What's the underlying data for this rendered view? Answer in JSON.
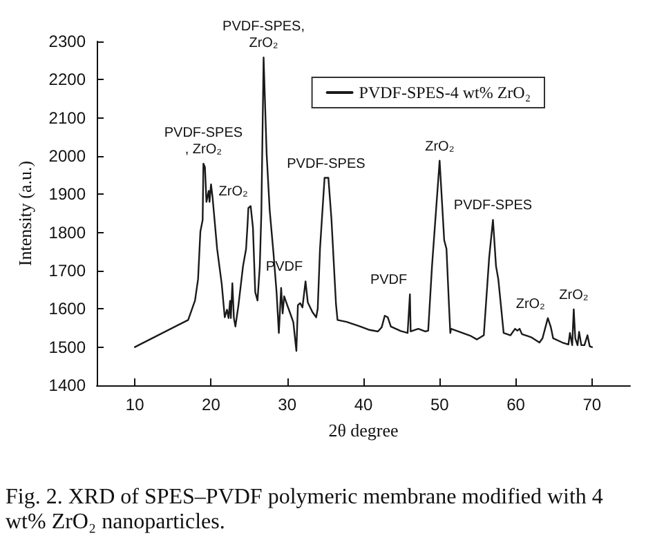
{
  "chart_data": {
    "type": "line",
    "xlabel": "2θ degree",
    "ylabel": "Intensity (a.u.)",
    "xlim": [
      5,
      75
    ],
    "xticks": [
      10,
      20,
      30,
      40,
      50,
      60,
      70
    ],
    "ylim": [
      1400,
      2300
    ],
    "yticks": [
      1400,
      1500,
      1600,
      1700,
      1800,
      1900,
      2000,
      2100,
      2200,
      2300
    ],
    "grid": false,
    "legend": "top right",
    "marker": "none",
    "line_style": "solid",
    "series": [
      {
        "name": "PVDF-SPES-4 wt% ZrO₂",
        "color": "#1a1a1a",
        "x": [
          10,
          17.0,
          17.9,
          18.3,
          18.6,
          18.9,
          19.0,
          19.2,
          19.4,
          19.7,
          19.8,
          20.0,
          20.2,
          20.8,
          21.4,
          21.8,
          22.1,
          22.3,
          22.5,
          22.6,
          22.8,
          23.0,
          23.2,
          23.6,
          24.2,
          24.6,
          24.8,
          24.9,
          25.2,
          25.5,
          25.8,
          26.1,
          26.4,
          26.6,
          26.9,
          27.3,
          27.7,
          28.2,
          28.6,
          28.9,
          29.2,
          29.4,
          29.6,
          30.0,
          30.4,
          30.8,
          31.2,
          31.4,
          31.7,
          32.0,
          32.4,
          32.7,
          33.3,
          33.8,
          34.0,
          34.3,
          34.9,
          35.4,
          35.8,
          36.4,
          36.6,
          37.8,
          39.6,
          40.8,
          41.9,
          42.4,
          42.8,
          43.2,
          43.6,
          44.9,
          45.8,
          46.1,
          46.2,
          47.2,
          48.1,
          48.5,
          49.0,
          50.0,
          50.6,
          50.9,
          51.2,
          51.4,
          51.5,
          54.0,
          54.9,
          55.8,
          56.5,
          57.0,
          57.4,
          57.7,
          58.4,
          59.3,
          59.9,
          60.2,
          60.5,
          60.8,
          62.0,
          63.1,
          63.5,
          64.2,
          64.6,
          64.9,
          66.1,
          66.9,
          67.1,
          67.4,
          67.6,
          67.8,
          68.1,
          68.3,
          68.6,
          69.0,
          69.4,
          69.7,
          70.0
        ],
        "values": [
          1500,
          1571,
          1622,
          1678,
          1802,
          1833,
          1980,
          1971,
          1880,
          1909,
          1880,
          1926,
          1892,
          1757,
          1666,
          1578,
          1598,
          1576,
          1621,
          1576,
          1667,
          1576,
          1554,
          1610,
          1712,
          1757,
          1824,
          1864,
          1869,
          1813,
          1644,
          1622,
          1712,
          1847,
          2258,
          2005,
          1858,
          1745,
          1644,
          1537,
          1655,
          1588,
          1633,
          1610,
          1588,
          1565,
          1490,
          1610,
          1615,
          1604,
          1672,
          1617,
          1592,
          1578,
          1600,
          1757,
          1943,
          1943,
          1836,
          1612,
          1571,
          1566,
          1554,
          1545,
          1541,
          1552,
          1582,
          1578,
          1554,
          1542,
          1537,
          1638,
          1541,
          1548,
          1541,
          1543,
          1712,
          1988,
          1780,
          1757,
          1622,
          1537,
          1548,
          1530,
          1520,
          1531,
          1734,
          1833,
          1712,
          1678,
          1537,
          1531,
          1548,
          1543,
          1548,
          1534,
          1526,
          1512,
          1523,
          1576,
          1552,
          1523,
          1512,
          1507,
          1537,
          1505,
          1599,
          1523,
          1505,
          1540,
          1505,
          1505,
          1531,
          1502,
          1500
        ]
      }
    ],
    "annotations": [
      {
        "text": "PVDF-SPES\n, ZrO₂",
        "x": 19.0,
        "y": 1980
      },
      {
        "text": "ZrO₂",
        "x": 25.2,
        "y": 1869
      },
      {
        "text": "PVDF-SPES,\nZrO₂",
        "x": 26.9,
        "y": 2258
      },
      {
        "text": "PVDF",
        "x": 32.4,
        "y": 1672
      },
      {
        "text": "PVDF-SPES",
        "x": 35.1,
        "y": 1943
      },
      {
        "text": "PVDF",
        "x": 46.1,
        "y": 1638
      },
      {
        "text": "ZrO₂",
        "x": 50.0,
        "y": 1988
      },
      {
        "text": "PVDF-SPES",
        "x": 57.0,
        "y": 1833
      },
      {
        "text": "ZrO₂",
        "x": 64.2,
        "y": 1576
      },
      {
        "text": "ZrO₂",
        "x": 67.6,
        "y": 1599
      },
      "Fig. 2. XRD of SPES–PVDF polymeric membrane modified with 4 wt% ZrO₂ nanoparticles."
    ]
  }
}
